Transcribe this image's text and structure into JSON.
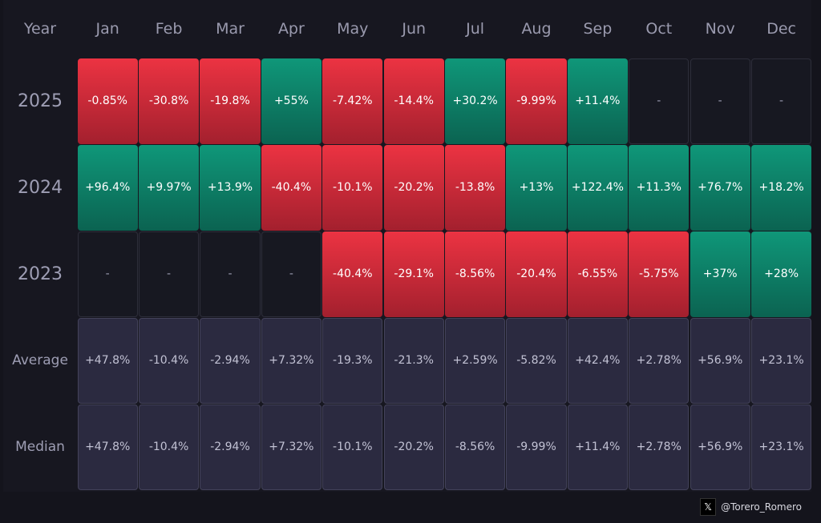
{
  "chart_data": {
    "type": "heatmap",
    "title": "",
    "corner_label": "Year",
    "months": [
      "Jan",
      "Feb",
      "Mar",
      "Apr",
      "May",
      "Jun",
      "Jul",
      "Aug",
      "Sep",
      "Oct",
      "Nov",
      "Dec"
    ],
    "rows": [
      {
        "label": "2025",
        "kind": "year",
        "values": [
          "-0.85%",
          "-30.8%",
          "-19.8%",
          "+55%",
          "-7.42%",
          "-14.4%",
          "+30.2%",
          "-9.99%",
          "+11.4%",
          "-",
          "-",
          "-"
        ]
      },
      {
        "label": "2024",
        "kind": "year",
        "values": [
          "+96.4%",
          "+9.97%",
          "+13.9%",
          "-40.4%",
          "-10.1%",
          "-20.2%",
          "-13.8%",
          "+13%",
          "+122.4%",
          "+11.3%",
          "+76.7%",
          "+18.2%"
        ]
      },
      {
        "label": "2023",
        "kind": "year",
        "values": [
          "-",
          "-",
          "-",
          "-",
          "-40.4%",
          "-29.1%",
          "-8.56%",
          "-20.4%",
          "-6.55%",
          "-5.75%",
          "+37%",
          "+28%"
        ]
      },
      {
        "label": "Average",
        "kind": "stat",
        "values": [
          "+47.8%",
          "-10.4%",
          "-2.94%",
          "+7.32%",
          "-19.3%",
          "-21.3%",
          "+2.59%",
          "-5.82%",
          "+42.4%",
          "+2.78%",
          "+56.9%",
          "+23.1%"
        ]
      },
      {
        "label": "Median",
        "kind": "stat",
        "values": [
          "+47.8%",
          "-10.4%",
          "-2.94%",
          "+7.32%",
          "-10.1%",
          "-20.2%",
          "-8.56%",
          "-9.99%",
          "+11.4%",
          "+2.78%",
          "+56.9%",
          "+23.1%"
        ]
      }
    ],
    "colors": {
      "positive": "#0f9779",
      "negative": "#ec3342",
      "empty": "#171821",
      "stat": "#2b2a40"
    }
  },
  "footer": {
    "icon": "x-logo-icon",
    "handle": "@Torero_Romero"
  }
}
